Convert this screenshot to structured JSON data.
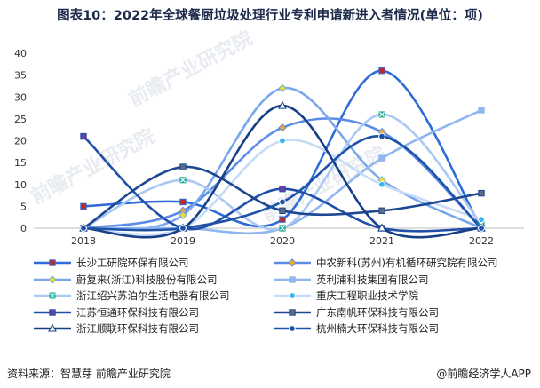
{
  "page": {
    "title": "图表10：2022年全球餐厨垃圾处理行业专利申请新进入者情况(单位：项)",
    "source": "资料来源：智慧芽 前瞻产业研究院",
    "brand": "@前瞻经济学人APP",
    "watermark": "前瞻产业研究院"
  },
  "chart_data": {
    "type": "line",
    "title": "图表10：2022年全球餐厨垃圾处理行业专利申请新进入者情况(单位：项)",
    "xlabel": "",
    "ylabel": "",
    "categories": [
      "2018",
      "2019",
      "2020",
      "2021",
      "2022"
    ],
    "ylim": [
      0,
      40
    ],
    "yticks": [
      0,
      5,
      10,
      15,
      20,
      25,
      30,
      35,
      40
    ],
    "grid": false,
    "legend_placement": "bottom",
    "series": [
      {
        "name": "长沙工研院环保有限公司",
        "values": [
          5,
          6,
          2,
          36,
          0
        ],
        "color": "#2e6bd8",
        "marker": "square",
        "marker_color": "#c0282c"
      },
      {
        "name": "中农新科(苏州)有机循环研究院有限公司",
        "values": [
          0,
          4,
          23,
          22,
          0
        ],
        "color": "#5b8de6",
        "marker": "diamond",
        "marker_color": "#f0a830"
      },
      {
        "name": "蔚复来(浙江)科技股份有限公司",
        "values": [
          0,
          3,
          32,
          11,
          0
        ],
        "color": "#7aa7ec",
        "marker": "diamond",
        "marker_color": "#e8e030"
      },
      {
        "name": "英利浦科技集团有限公司",
        "values": [
          0,
          0,
          0,
          16,
          27
        ],
        "color": "#8fb6ee",
        "marker": "square",
        "marker_color": "#8fb6ee"
      },
      {
        "name": "浙江绍兴苏泊尔生活电器有限公司",
        "values": [
          0,
          11,
          0,
          26,
          1
        ],
        "color": "#a9c8f2",
        "marker": "x",
        "marker_color": "#1aa98f"
      },
      {
        "name": "重庆工程职业技术学院",
        "values": [
          0,
          0,
          20,
          10,
          2
        ],
        "color": "#c5dbf7",
        "marker": "circle",
        "marker_color": "#36b5ee"
      },
      {
        "name": "江苏恒通环保科技有限公司",
        "values": [
          21,
          0,
          9,
          0,
          0
        ],
        "color": "#1f4fa8",
        "marker": "square",
        "marker_color": "#6a3fa0"
      },
      {
        "name": "广东南帆环保科技有限公司",
        "values": [
          0,
          14,
          4,
          4,
          8
        ],
        "color": "#1e4791",
        "marker": "square",
        "marker_color": "#5b6b86"
      },
      {
        "name": "浙江顺联环保科技有限公司",
        "values": [
          0,
          0,
          28,
          0,
          0
        ],
        "color": "#163f86",
        "marker": "triangle",
        "marker_color": "#ffffff"
      },
      {
        "name": "杭州楠大环保科技有限公司",
        "values": [
          0,
          0,
          6,
          21,
          0
        ],
        "color": "#1d52a6",
        "marker": "circle",
        "marker_color": "#1d52a6"
      }
    ]
  }
}
